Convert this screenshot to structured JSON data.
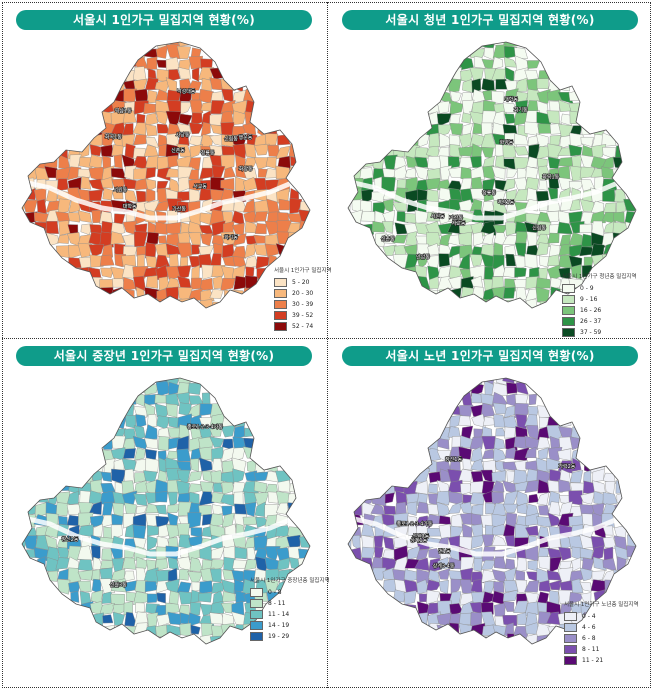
{
  "panels": [
    {
      "title": "서울시 1인가구 밀집지역 현황(%)",
      "legend_title": "서울시 1인가구 밀집지역",
      "classes": [
        {
          "range": "5 - 20",
          "color": "#fbe3c4"
        },
        {
          "range": "20 - 30",
          "color": "#f7b87c"
        },
        {
          "range": "30 - 39",
          "color": "#ed7f4a"
        },
        {
          "range": "39 - 52",
          "color": "#d33d22"
        },
        {
          "range": "52 - 74",
          "color": "#8c0a0a"
        }
      ],
      "district_labels": [
        "화곡1동",
        "신촌동",
        "대학동",
        "신림동",
        "서교동",
        "역삼1동",
        "가산동",
        "회기동",
        "화양동",
        "행운동",
        "청룡동",
        "낙성대동",
        "서원동",
        "사당동"
      ]
    },
    {
      "title": "서울시 청년 1인가구 밀집지역 현황(%)",
      "legend_title": "서울시 1인가구 청년층 밀집지역",
      "classes": [
        {
          "range": "0 - 9",
          "color": "#f4fbf1"
        },
        {
          "range": "9 - 16",
          "color": "#c6e8bf"
        },
        {
          "range": "16 - 26",
          "color": "#7cc57b"
        },
        {
          "range": "26 - 37",
          "color": "#2e9447"
        },
        {
          "range": "37 - 59",
          "color": "#0a4a22"
        }
      ],
      "district_labels": [
        "화곡1동",
        "신촌동",
        "서교동",
        "대학동",
        "신림동",
        "역삼1동",
        "회기동",
        "화양동",
        "안암동",
        "가산동",
        "청룡동",
        "서원동"
      ]
    },
    {
      "title": "서울시 중장년 1인가구 밀집지역 현황(%)",
      "legend_title": "서울시 1인가구 중장년층 밀집지역",
      "classes": [
        {
          "range": "0 - 8",
          "color": "#f3f9ef"
        },
        {
          "range": "8 - 11",
          "color": "#bfe4c8"
        },
        {
          "range": "11 - 14",
          "color": "#6fc3c2"
        },
        {
          "range": "14 - 19",
          "color": "#3b9ccc"
        },
        {
          "range": "19 - 29",
          "color": "#1f62a8"
        }
      ],
      "district_labels": [
        "신월3동",
        "창신2동",
        "종로1·2·3·4가동"
      ]
    },
    {
      "title": "서울시 노년 1인가구 밀집지역 현황(%)",
      "legend_title": "서울시 1인가구 노년층 밀집지역",
      "classes": [
        {
          "range": "0 - 4",
          "color": "#eef0f7"
        },
        {
          "range": "4 - 6",
          "color": "#b9c8e2"
        },
        {
          "range": "6 - 8",
          "color": "#9a8fc8"
        },
        {
          "range": "8 - 11",
          "color": "#7b4fae"
        },
        {
          "range": "11 - 21",
          "color": "#5a0a74"
        }
      ],
      "district_labels": [
        "번1동",
        "상계3·4동",
        "창신1동",
        "종로1·2·3·4가동",
        "신월3동",
        "가락2동",
        "상계1동"
      ]
    }
  ]
}
